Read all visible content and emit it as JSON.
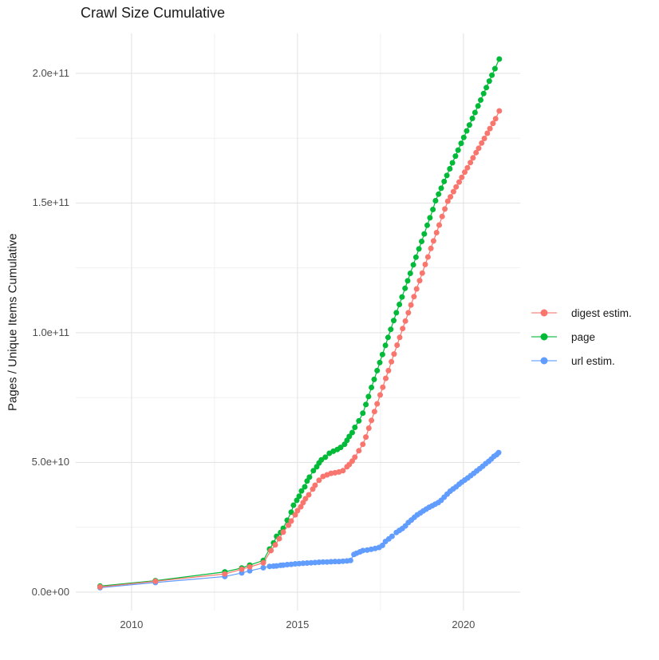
{
  "title": "Crawl Size Cumulative",
  "y_axis": {
    "label": "Pages / Unique Items Cumulative",
    "ticks": [
      {
        "value": 0,
        "label": "0.0e+00"
      },
      {
        "value": 50000000000.0,
        "label": "5.0e+10"
      },
      {
        "value": 100000000000.0,
        "label": "1.0e+11"
      },
      {
        "value": 150000000000.0,
        "label": "1.5e+11"
      },
      {
        "value": 200000000000.0,
        "label": "2.0e+11"
      }
    ]
  },
  "x_axis": {
    "label": "",
    "ticks": [
      {
        "value": 2010,
        "label": "2010"
      },
      {
        "value": 2015,
        "label": "2015"
      },
      {
        "value": 2020,
        "label": "2020"
      }
    ]
  },
  "legend": [
    {
      "name": "digest estim.",
      "color": "#F8766D"
    },
    {
      "name": "page",
      "color": "#00BA38"
    },
    {
      "name": "url estim.",
      "color": "#619CFF"
    }
  ],
  "colors": {
    "grid_major": "#e4e4e4",
    "grid_minor": "#efefef",
    "tick_text": "#4d4d4d",
    "title_text": "#1a1a1a"
  },
  "chart_data": {
    "type": "scatter",
    "title": "Crawl Size Cumulative",
    "xlabel": "",
    "ylabel": "Pages / Unique Items Cumulative",
    "x_range": [
      2008.32,
      2021.71
    ],
    "y_range": [
      -7100000000.0,
      215350000000.0
    ],
    "x_minor_gridlines": [
      2012.5,
      2017.5
    ],
    "y_minor_gridlines": [
      25000000000.0,
      75000000000.0,
      125000000000.0,
      175000000000.0
    ],
    "grid": true,
    "legend_position": "right",
    "marker_radius": 3.5,
    "series": [
      {
        "name": "url estim.",
        "color": "#619CFF",
        "points": [
          [
            2009.05,
            1700000000.0
          ],
          [
            2010.72,
            3700000000.0
          ],
          [
            2012.81,
            6000000000.0
          ],
          [
            2013.32,
            7400000000.0
          ],
          [
            2013.56,
            8200000000.0
          ],
          [
            2013.97,
            9400000000.0
          ],
          [
            2014.16,
            9900000000.0
          ],
          [
            2014.28,
            10000000000.0
          ],
          [
            2014.37,
            10100000000.0
          ],
          [
            2014.49,
            10300000000.0
          ],
          [
            2014.57,
            10400000000.0
          ],
          [
            2014.69,
            10600000000.0
          ],
          [
            2014.81,
            10700000000.0
          ],
          [
            2014.93,
            10900000000.0
          ],
          [
            2015.05,
            11000000000.0
          ],
          [
            2015.17,
            11100000000.0
          ],
          [
            2015.29,
            11200000000.0
          ],
          [
            2015.41,
            11300000000.0
          ],
          [
            2015.53,
            11400000000.0
          ],
          [
            2015.65,
            11500000000.0
          ],
          [
            2015.77,
            11600000000.0
          ],
          [
            2015.89,
            11600000000.0
          ],
          [
            2016.01,
            11700000000.0
          ],
          [
            2016.13,
            11800000000.0
          ],
          [
            2016.25,
            11800000000.0
          ],
          [
            2016.37,
            11900000000.0
          ],
          [
            2016.49,
            12000000000.0
          ],
          [
            2016.6,
            12200000000.0
          ],
          [
            2016.7,
            14500000000.0
          ],
          [
            2016.78,
            15000000000.0
          ],
          [
            2016.88,
            15500000000.0
          ],
          [
            2016.97,
            16000000000.0
          ],
          [
            2017.1,
            16200000000.0
          ],
          [
            2017.22,
            16500000000.0
          ],
          [
            2017.34,
            16800000000.0
          ],
          [
            2017.46,
            17200000000.0
          ],
          [
            2017.56,
            18000000000.0
          ],
          [
            2017.65,
            19500000000.0
          ],
          [
            2017.75,
            20500000000.0
          ],
          [
            2017.85,
            21500000000.0
          ],
          [
            2017.98,
            23000000000.0
          ],
          [
            2018.07,
            23800000000.0
          ],
          [
            2018.16,
            24500000000.0
          ],
          [
            2018.25,
            25500000000.0
          ],
          [
            2018.34,
            26800000000.0
          ],
          [
            2018.43,
            27800000000.0
          ],
          [
            2018.52,
            28800000000.0
          ],
          [
            2018.61,
            29800000000.0
          ],
          [
            2018.7,
            30500000000.0
          ],
          [
            2018.79,
            31300000000.0
          ],
          [
            2018.88,
            32000000000.0
          ],
          [
            2018.97,
            32700000000.0
          ],
          [
            2019.06,
            33300000000.0
          ],
          [
            2019.15,
            33900000000.0
          ],
          [
            2019.24,
            34500000000.0
          ],
          [
            2019.33,
            35400000000.0
          ],
          [
            2019.42,
            36600000000.0
          ],
          [
            2019.51,
            37800000000.0
          ],
          [
            2019.6,
            38900000000.0
          ],
          [
            2019.69,
            39800000000.0
          ],
          [
            2019.78,
            40600000000.0
          ],
          [
            2019.87,
            41600000000.0
          ],
          [
            2019.95,
            42400000000.0
          ],
          [
            2020.04,
            43200000000.0
          ],
          [
            2020.13,
            44000000000.0
          ],
          [
            2020.22,
            44900000000.0
          ],
          [
            2020.31,
            45800000000.0
          ],
          [
            2020.4,
            46700000000.0
          ],
          [
            2020.49,
            47600000000.0
          ],
          [
            2020.58,
            48500000000.0
          ],
          [
            2020.67,
            49500000000.0
          ],
          [
            2020.76,
            50400000000.0
          ],
          [
            2020.84,
            51300000000.0
          ],
          [
            2020.92,
            52300000000.0
          ],
          [
            2021.0,
            53000000000.0
          ],
          [
            2021.06,
            53800000000.0
          ]
        ]
      },
      {
        "name": "page",
        "color": "#00BA38",
        "points": [
          [
            2009.05,
            2300000000.0
          ],
          [
            2010.72,
            4400000000.0
          ],
          [
            2012.81,
            7800000000.0
          ],
          [
            2013.32,
            9300000000.0
          ],
          [
            2013.56,
            10400000000.0
          ],
          [
            2013.97,
            12200000000.0
          ],
          [
            2014.16,
            16600000000.0
          ],
          [
            2014.28,
            19000000000.0
          ],
          [
            2014.37,
            21500000000.0
          ],
          [
            2014.49,
            23000000000.0
          ],
          [
            2014.57,
            24600000000.0
          ],
          [
            2014.69,
            27700000000.0
          ],
          [
            2014.81,
            30800000000.0
          ],
          [
            2014.88,
            33500000000.0
          ],
          [
            2014.98,
            35400000000.0
          ],
          [
            2015.05,
            37000000000.0
          ],
          [
            2015.12,
            39000000000.0
          ],
          [
            2015.22,
            40600000000.0
          ],
          [
            2015.29,
            42800000000.0
          ],
          [
            2015.36,
            44300000000.0
          ],
          [
            2015.48,
            46800000000.0
          ],
          [
            2015.58,
            48300000000.0
          ],
          [
            2015.65,
            49800000000.0
          ],
          [
            2015.72,
            51000000000.0
          ],
          [
            2015.84,
            52000000000.0
          ],
          [
            2015.96,
            53500000000.0
          ],
          [
            2016.08,
            54300000000.0
          ],
          [
            2016.2,
            55000000000.0
          ],
          [
            2016.3,
            55800000000.0
          ],
          [
            2016.42,
            57000000000.0
          ],
          [
            2016.49,
            58500000000.0
          ],
          [
            2016.56,
            60000000000.0
          ],
          [
            2016.65,
            61500000000.0
          ],
          [
            2016.73,
            63500000000.0
          ],
          [
            2016.85,
            66000000000.0
          ],
          [
            2016.97,
            69000000000.0
          ],
          [
            2017.06,
            72300000000.0
          ],
          [
            2017.14,
            75400000000.0
          ],
          [
            2017.23,
            78900000000.0
          ],
          [
            2017.31,
            82000000000.0
          ],
          [
            2017.4,
            85400000000.0
          ],
          [
            2017.48,
            88500000000.0
          ],
          [
            2017.56,
            91600000000.0
          ],
          [
            2017.65,
            95100000000.0
          ],
          [
            2017.73,
            98200000000.0
          ],
          [
            2017.81,
            101300000000.0
          ],
          [
            2017.9,
            104700000000.0
          ],
          [
            2017.98,
            107700000000.0
          ],
          [
            2018.07,
            110900000000.0
          ],
          [
            2018.15,
            113800000000.0
          ],
          [
            2018.24,
            117100000000.0
          ],
          [
            2018.32,
            120000000000.0
          ],
          [
            2018.4,
            122900000000.0
          ],
          [
            2018.49,
            126200000000.0
          ],
          [
            2018.57,
            129100000000.0
          ],
          [
            2018.66,
            132300000000.0
          ],
          [
            2018.74,
            135200000000.0
          ],
          [
            2018.82,
            138100000000.0
          ],
          [
            2018.91,
            141400000000.0
          ],
          [
            2018.99,
            144300000000.0
          ],
          [
            2019.08,
            147500000000.0
          ],
          [
            2019.16,
            150900000000.0
          ],
          [
            2019.25,
            153400000000.0
          ],
          [
            2019.33,
            155700000000.0
          ],
          [
            2019.42,
            158300000000.0
          ],
          [
            2019.5,
            160600000000.0
          ],
          [
            2019.59,
            163200000000.0
          ],
          [
            2019.67,
            165500000000.0
          ],
          [
            2019.76,
            168100000000.0
          ],
          [
            2019.84,
            170400000000.0
          ],
          [
            2019.93,
            173000000000.0
          ],
          [
            2020.01,
            175300000000.0
          ],
          [
            2020.1,
            177800000000.0
          ],
          [
            2020.18,
            180100000000.0
          ],
          [
            2020.27,
            182600000000.0
          ],
          [
            2020.35,
            184900000000.0
          ],
          [
            2020.44,
            187400000000.0
          ],
          [
            2020.52,
            189700000000.0
          ],
          [
            2020.61,
            192200000000.0
          ],
          [
            2020.69,
            194500000000.0
          ],
          [
            2020.78,
            197000000000.0
          ],
          [
            2020.86,
            199300000000.0
          ],
          [
            2020.95,
            201800000000.0
          ],
          [
            2021.08,
            205500000000.0
          ]
        ]
      },
      {
        "name": "digest estim.",
        "color": "#F8766D",
        "points": [
          [
            2009.05,
            2000000000.0
          ],
          [
            2010.72,
            4200000000.0
          ],
          [
            2012.81,
            7000000000.0
          ],
          [
            2013.32,
            8800000000.0
          ],
          [
            2013.56,
            9700000000.0
          ],
          [
            2013.97,
            11300000000.0
          ],
          [
            2014.2,
            16000000000.0
          ],
          [
            2014.33,
            18200000000.0
          ],
          [
            2014.45,
            20600000000.0
          ],
          [
            2014.57,
            23100000000.0
          ],
          [
            2014.73,
            25800000000.0
          ],
          [
            2014.81,
            27400000000.0
          ],
          [
            2014.93,
            29800000000.0
          ],
          [
            2015.0,
            31400000000.0
          ],
          [
            2015.1,
            32900000000.0
          ],
          [
            2015.17,
            34500000000.0
          ],
          [
            2015.24,
            36000000000.0
          ],
          [
            2015.34,
            37500000000.0
          ],
          [
            2015.46,
            39700000000.0
          ],
          [
            2015.53,
            41200000000.0
          ],
          [
            2015.65,
            43100000000.0
          ],
          [
            2015.77,
            44600000000.0
          ],
          [
            2015.89,
            45200000000.0
          ],
          [
            2016.01,
            45800000000.0
          ],
          [
            2016.13,
            46000000000.0
          ],
          [
            2016.25,
            46300000000.0
          ],
          [
            2016.37,
            46800000000.0
          ],
          [
            2016.49,
            48300000000.0
          ],
          [
            2016.56,
            49200000000.0
          ],
          [
            2016.65,
            50500000000.0
          ],
          [
            2016.73,
            52000000000.0
          ],
          [
            2016.85,
            54500000000.0
          ],
          [
            2016.97,
            57000000000.0
          ],
          [
            2017.06,
            59800000000.0
          ],
          [
            2017.15,
            63200000000.0
          ],
          [
            2017.23,
            66200000000.0
          ],
          [
            2017.32,
            69600000000.0
          ],
          [
            2017.4,
            72600000000.0
          ],
          [
            2017.49,
            76000000000.0
          ],
          [
            2017.57,
            79000000000.0
          ],
          [
            2017.66,
            82400000000.0
          ],
          [
            2017.74,
            85400000000.0
          ],
          [
            2017.83,
            88800000000.0
          ],
          [
            2017.91,
            91800000000.0
          ],
          [
            2018.0,
            95200000000.0
          ],
          [
            2018.08,
            98200000000.0
          ],
          [
            2018.17,
            101600000000.0
          ],
          [
            2018.25,
            104500000000.0
          ],
          [
            2018.34,
            107700000000.0
          ],
          [
            2018.42,
            110700000000.0
          ],
          [
            2018.51,
            113900000000.0
          ],
          [
            2018.59,
            116900000000.0
          ],
          [
            2018.68,
            120100000000.0
          ],
          [
            2018.76,
            123000000000.0
          ],
          [
            2018.85,
            126300000000.0
          ],
          [
            2018.93,
            129200000000.0
          ],
          [
            2019.02,
            132500000000.0
          ],
          [
            2019.1,
            135400000000.0
          ],
          [
            2019.19,
            138600000000.0
          ],
          [
            2019.27,
            141500000000.0
          ],
          [
            2019.36,
            144800000000.0
          ],
          [
            2019.44,
            147700000000.0
          ],
          [
            2019.53,
            150700000000.0
          ],
          [
            2019.61,
            152400000000.0
          ],
          [
            2019.7,
            154400000000.0
          ],
          [
            2019.78,
            156200000000.0
          ],
          [
            2019.87,
            158100000000.0
          ],
          [
            2019.95,
            159900000000.0
          ],
          [
            2020.04,
            161900000000.0
          ],
          [
            2020.12,
            163600000000.0
          ],
          [
            2020.21,
            165600000000.0
          ],
          [
            2020.29,
            167400000000.0
          ],
          [
            2020.38,
            169400000000.0
          ],
          [
            2020.46,
            171100000000.0
          ],
          [
            2020.55,
            173100000000.0
          ],
          [
            2020.63,
            174900000000.0
          ],
          [
            2020.72,
            176900000000.0
          ],
          [
            2020.8,
            178700000000.0
          ],
          [
            2020.89,
            180700000000.0
          ],
          [
            2020.97,
            182500000000.0
          ],
          [
            2021.08,
            185500000000.0
          ]
        ]
      }
    ]
  }
}
